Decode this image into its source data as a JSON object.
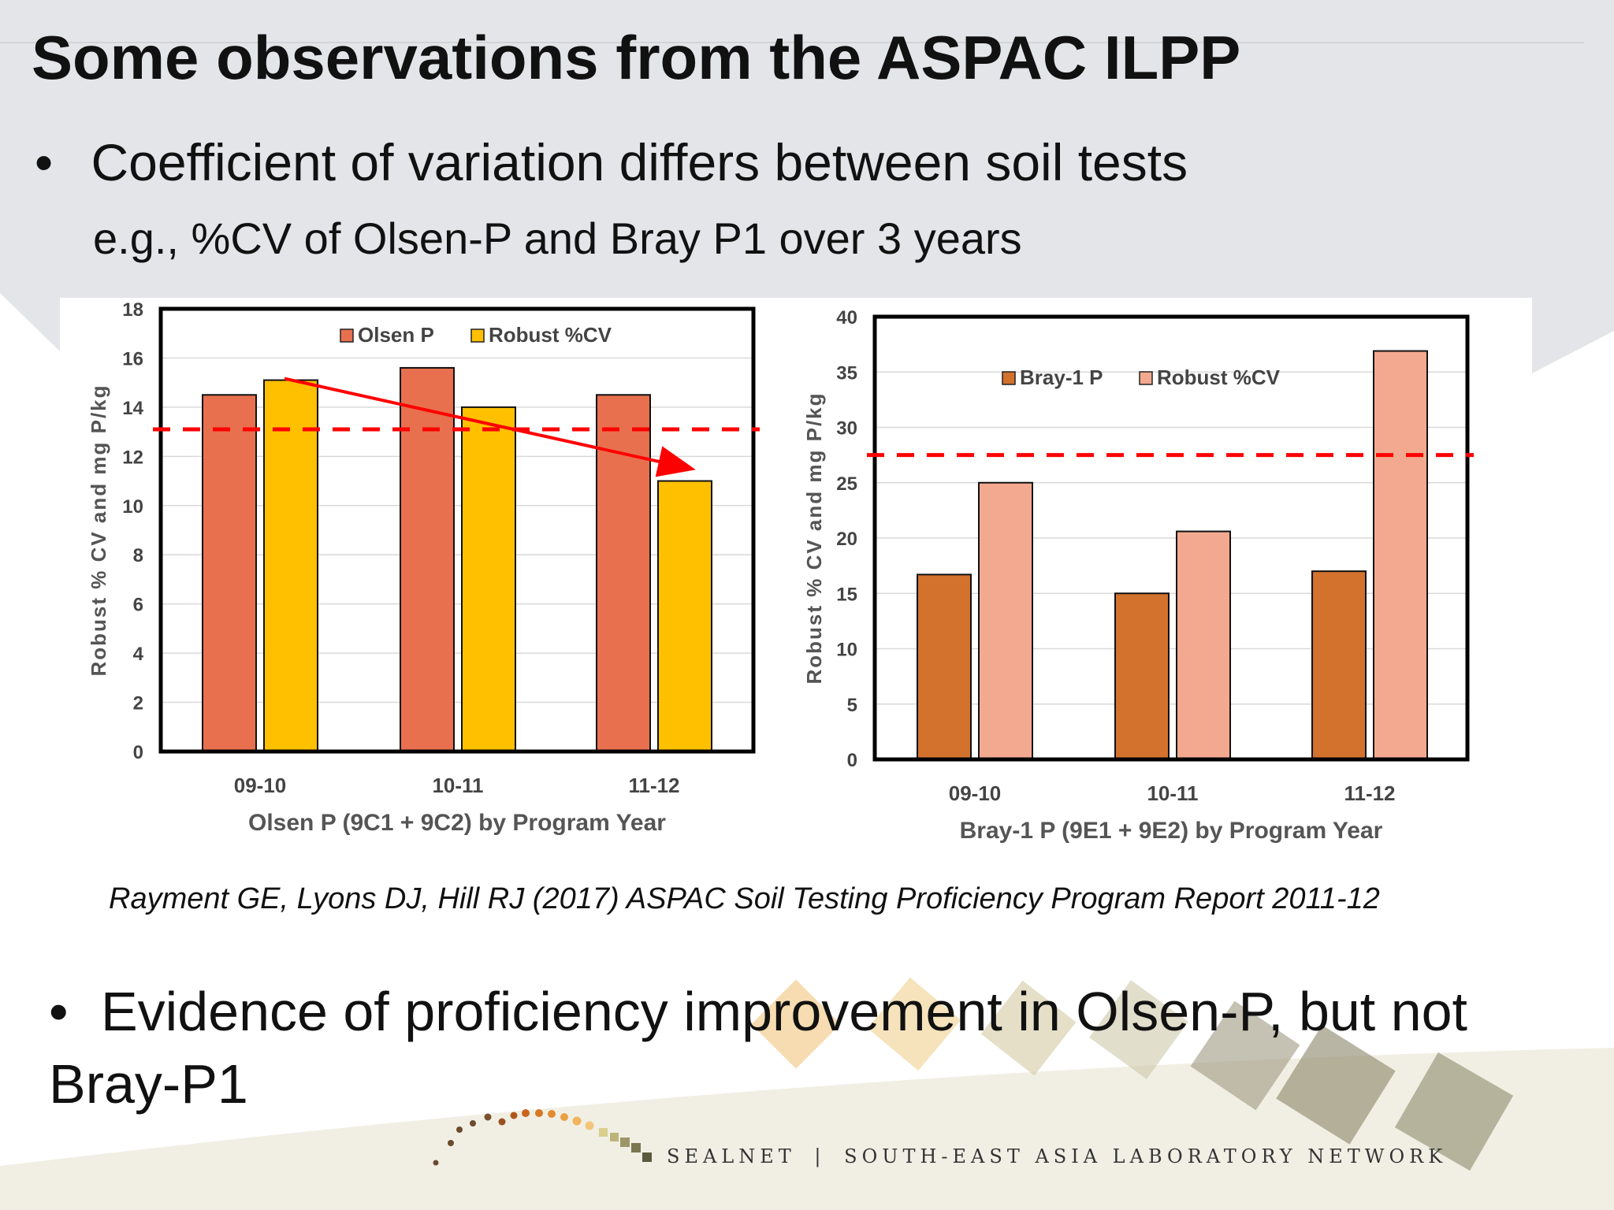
{
  "slide": {
    "title": "Some observations from the ASPAC ILPP",
    "bullet1": "Coefficient of variation differs between soil tests",
    "bullet1_sub": "e.g., %CV of Olsen-P and Bray P1 over 3 years",
    "citation": "Rayment GE, Lyons DJ, Hill RJ (2017) ASPAC Soil Testing Proficiency Program Report 2011-12",
    "bullet2": "Evidence of proficiency improvement in Olsen-P, but not Bray-P1",
    "bullet_symbol": "•",
    "footer": {
      "brand": "SEALNET",
      "separator": "|",
      "tagline": "SOUTH-EAST ASIA LABORATORY NETWORK"
    }
  },
  "colors": {
    "olsen_p": "#e8704f",
    "robust_cv_olsen": "#ffc000",
    "bray_p": "#d2722d",
    "robust_cv_bray": "#f3a98f",
    "reference_line": "#ff0000",
    "trend_arrow": "#ff0000"
  },
  "chart_data": [
    {
      "type": "bar",
      "xlabel": "Olsen  P (9C1 + 9C2) by Program Year",
      "ylabel": "Robust % CV and mg P/kg",
      "categories": [
        "09-10",
        "10-11",
        "11-12"
      ],
      "series": [
        {
          "name": "Olsen P",
          "values": [
            14.5,
            15.6,
            14.5
          ]
        },
        {
          "name": "Robust %CV",
          "values": [
            15.1,
            14.0,
            11.0
          ]
        }
      ],
      "ylim": [
        0,
        18
      ],
      "yticks": [
        0,
        2,
        4,
        6,
        8,
        10,
        12,
        14,
        16,
        18
      ],
      "reference_line": 13.1,
      "trend_arrow": {
        "from": 15.1,
        "to": 11.0
      },
      "legend_position": "top-center",
      "grid": true
    },
    {
      "type": "bar",
      "xlabel": "Bray-1 P (9E1 + 9E2) by Program Year",
      "ylabel": "Robust % CV and mg P/kg",
      "categories": [
        "09-10",
        "10-11",
        "11-12"
      ],
      "series": [
        {
          "name": "Bray-1 P",
          "values": [
            16.7,
            15.0,
            17.0
          ]
        },
        {
          "name": "Robust %CV",
          "values": [
            25.0,
            20.6,
            36.9
          ]
        }
      ],
      "ylim": [
        0,
        40
      ],
      "yticks": [
        0,
        5,
        10,
        15,
        20,
        25,
        30,
        35,
        40
      ],
      "reference_line": 27.5,
      "legend_position": "top-center",
      "grid": true
    }
  ]
}
